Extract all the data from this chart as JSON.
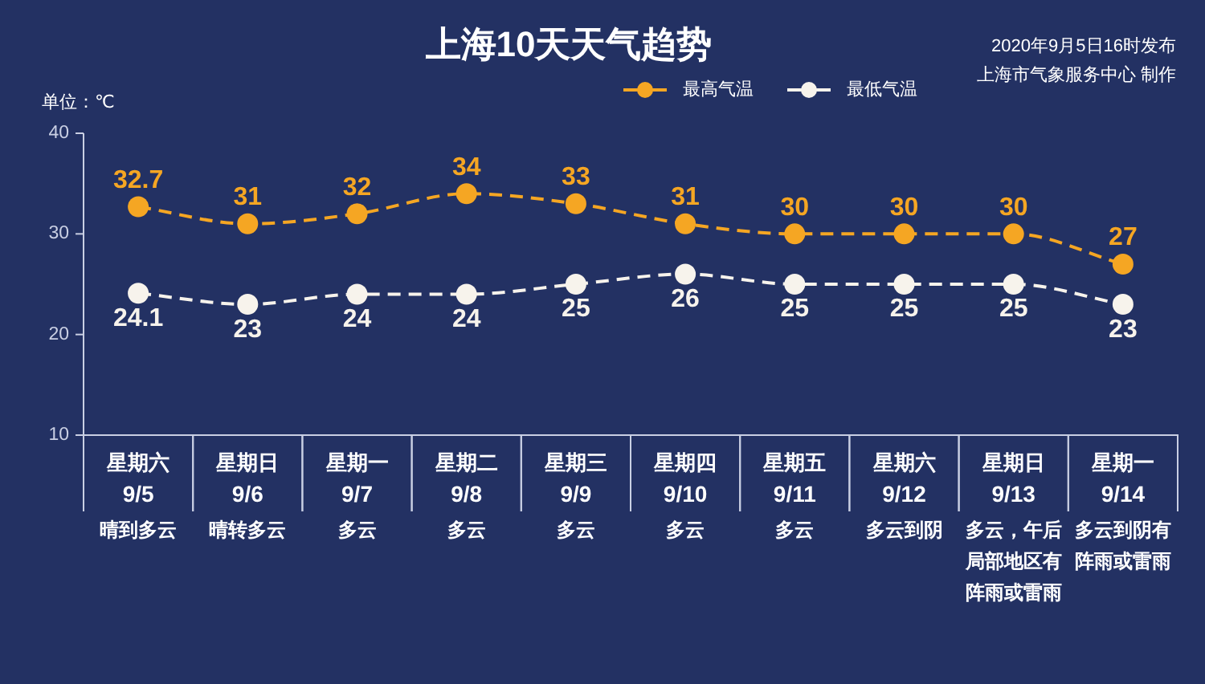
{
  "chart_data": {
    "type": "line",
    "title": "上海10天天气趋势",
    "ylabel": "单位：℃",
    "annotations": [
      "2020年9月5日16时发布",
      "上海市气象服务中心 制作"
    ],
    "categories": [
      "星期六\n9/5\n晴到多云",
      "星期日\n9/6\n晴转多云",
      "星期一\n9/7\n多云",
      "星期二\n9/8\n多云",
      "星期三\n9/9\n多云",
      "星期四\n9/10\n多云",
      "星期五\n9/11\n多云",
      "星期六\n9/12\n多云到阴",
      "星期日\n9/13\n多云，午后局部地区有阵雨或雷雨",
      "星期一\n9/14\n多云到阴有阵雨或雷雨"
    ],
    "series": [
      {
        "name": "最高气温",
        "color": "#f5a623",
        "values": [
          32.7,
          31,
          32,
          34,
          33,
          31,
          30,
          30,
          30,
          27
        ]
      },
      {
        "name": "最低气温",
        "color": "#f7f3ec",
        "values": [
          24.1,
          23,
          24,
          24,
          25,
          26,
          25,
          25,
          25,
          23
        ]
      }
    ],
    "ylim": [
      10,
      40
    ],
    "yticks": [
      10,
      20,
      30,
      40
    ],
    "legend": "top",
    "marker": "circle",
    "line_style": "dashed",
    "data_labels": true
  }
}
